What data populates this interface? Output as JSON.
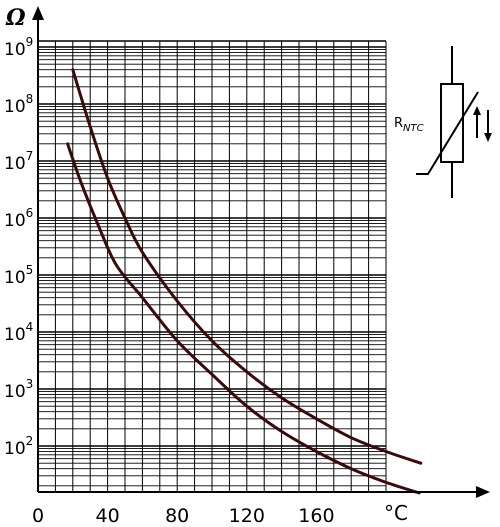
{
  "chart_data": {
    "type": "line",
    "xlabel": "°C",
    "ylabel": "Ω",
    "y_scale": "log",
    "xlim": [
      0,
      200
    ],
    "ylim": [
      10,
      1000000000
    ],
    "x_ticks": [
      {
        "value": 0,
        "label": "0"
      },
      {
        "value": 40,
        "label": "40"
      },
      {
        "value": 80,
        "label": "80"
      },
      {
        "value": 120,
        "label": "120"
      },
      {
        "value": 160,
        "label": "160"
      }
    ],
    "y_ticks": [
      {
        "value": 100,
        "base": "10",
        "exp": "2"
      },
      {
        "value": 1000,
        "base": "10",
        "exp": "3"
      },
      {
        "value": 10000,
        "base": "10",
        "exp": "4"
      },
      {
        "value": 100000,
        "base": "10",
        "exp": "5"
      },
      {
        "value": 1000000,
        "base": "10",
        "exp": "6"
      },
      {
        "value": 10000000,
        "base": "10",
        "exp": "7"
      },
      {
        "value": 100000000,
        "base": "10",
        "exp": "8"
      },
      {
        "value": 1000000000,
        "base": "10",
        "exp": "9"
      }
    ],
    "grid": true,
    "series_color": "#3a0a0a",
    "series": [
      {
        "x": [
          20,
          30,
          40,
          50,
          60,
          80,
          100,
          120,
          140,
          160,
          180,
          200,
          220
        ],
        "y": [
          400000000,
          40000000,
          5000000,
          1000000,
          250000,
          35000,
          7000,
          2000,
          700,
          300,
          140,
          80,
          50
        ]
      },
      {
        "x": [
          17,
          25,
          35,
          45,
          60,
          80,
          100,
          120,
          140,
          160,
          180,
          200,
          219
        ],
        "y": [
          20000000,
          4000000,
          700000,
          150000,
          40000,
          7000,
          1800,
          500,
          180,
          80,
          40,
          23,
          15
        ]
      }
    ],
    "symbol": {
      "label": "R",
      "subscript": "NTC"
    }
  }
}
